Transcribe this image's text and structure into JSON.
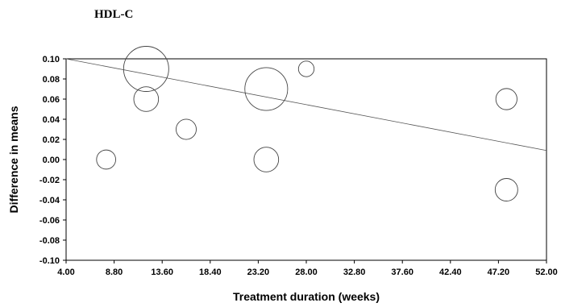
{
  "chart_data": {
    "type": "scatter",
    "title": "HDL-C",
    "xlabel": "Treatment duration (weeks)",
    "ylabel": "Difference in means",
    "xlim": [
      4.0,
      52.0
    ],
    "ylim": [
      -0.1,
      0.1
    ],
    "x_ticks": [
      "4.00",
      "8.80",
      "13.60",
      "18.40",
      "23.20",
      "28.00",
      "32.80",
      "37.60",
      "42.40",
      "47.20",
      "52.00"
    ],
    "y_ticks": [
      "0.10",
      "0.08",
      "0.06",
      "0.04",
      "0.02",
      "0.00",
      "-0.02",
      "-0.04",
      "-0.06",
      "-0.08",
      "-0.10"
    ],
    "points": [
      {
        "x": 8.0,
        "y": 0.0,
        "size": 0.18
      },
      {
        "x": 12.0,
        "y": 0.09,
        "size": 1.0
      },
      {
        "x": 12.0,
        "y": 0.06,
        "size": 0.3
      },
      {
        "x": 16.0,
        "y": 0.03,
        "size": 0.2
      },
      {
        "x": 24.0,
        "y": 0.07,
        "size": 0.9
      },
      {
        "x": 24.0,
        "y": 0.0,
        "size": 0.3
      },
      {
        "x": 28.0,
        "y": 0.09,
        "size": 0.12
      },
      {
        "x": 48.0,
        "y": 0.06,
        "size": 0.22
      },
      {
        "x": 48.0,
        "y": -0.03,
        "size": 0.25
      }
    ],
    "regression_line": {
      "x": [
        4.0,
        52.0
      ],
      "y": [
        0.1,
        0.009
      ]
    },
    "grid": false,
    "legend": "none"
  }
}
